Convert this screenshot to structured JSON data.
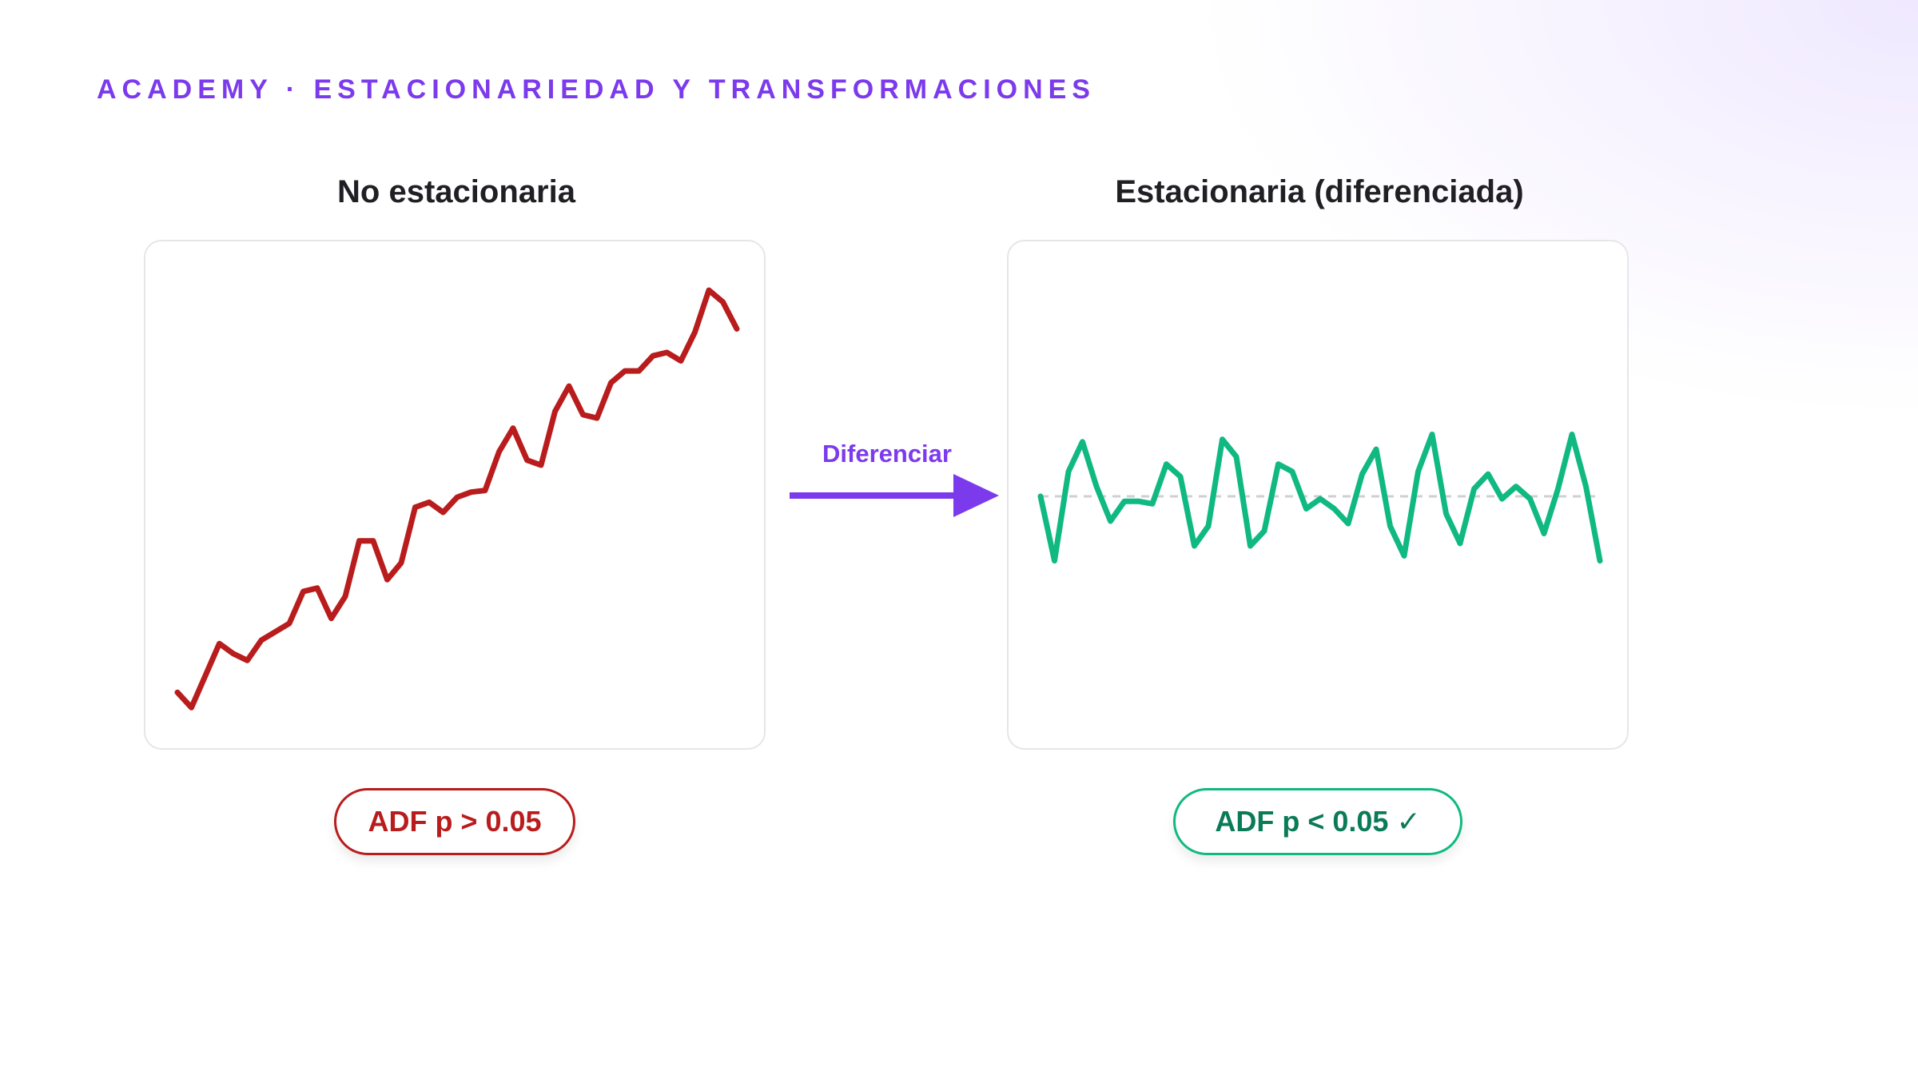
{
  "header": {
    "eyebrow": "ACADEMY · ESTACIONARIEDAD Y TRANSFORMACIONES"
  },
  "panels": {
    "left_title": "No estacionaria",
    "right_title": "Estacionaria (diferenciada)",
    "transform_label": "Diferenciar",
    "left_badge": "ADF p > 0.05",
    "right_badge": "ADF p < 0.05 ✓"
  },
  "colors": {
    "accent": "#7c3aed",
    "non_stationary": "#b91c1c",
    "stationary": "#10b981",
    "zero_line": "#cfcfd4"
  },
  "chart_data": [
    {
      "type": "line",
      "title": "No estacionaria",
      "x": [
        0,
        1,
        2,
        3,
        4,
        5,
        6,
        7,
        8,
        9,
        10,
        11,
        12,
        13,
        14,
        15,
        16,
        17,
        18,
        19,
        20,
        21,
        22,
        23,
        24,
        25,
        26,
        27,
        28,
        29,
        30,
        31,
        32,
        33,
        34,
        35,
        36,
        37,
        38,
        39,
        40
      ],
      "values": [
        2.2,
        0.4,
        4.2,
        8.0,
        6.8,
        6.0,
        8.4,
        9.4,
        10.4,
        14.2,
        14.6,
        11.0,
        13.6,
        20.2,
        20.2,
        15.6,
        17.6,
        24.2,
        24.8,
        23.6,
        25.4,
        26.0,
        26.2,
        30.8,
        33.6,
        29.8,
        29.2,
        35.6,
        38.6,
        35.2,
        34.8,
        39.0,
        40.4,
        40.4,
        42.2,
        42.6,
        41.6,
        45.0,
        50.0,
        48.6,
        45.4
      ],
      "ylim": [
        -1,
        52
      ],
      "grid": false,
      "legend": "none"
    },
    {
      "type": "line",
      "title": "Estacionaria (diferenciada)",
      "x": [
        0,
        1,
        2,
        3,
        4,
        5,
        6,
        7,
        8,
        9,
        10,
        11,
        12,
        13,
        14,
        15,
        16,
        17,
        18,
        19,
        20,
        21,
        22,
        23,
        24,
        25,
        26,
        27,
        28,
        29,
        30,
        31,
        32,
        33,
        34,
        35,
        36,
        37,
        38,
        39,
        40
      ],
      "values": [
        0.0,
        -2.6,
        1.0,
        2.2,
        0.4,
        -1.0,
        -0.2,
        -0.2,
        -0.3,
        1.3,
        0.8,
        -2.0,
        -1.2,
        2.3,
        1.6,
        -2.0,
        -1.4,
        1.3,
        1.0,
        -0.5,
        -0.1,
        -0.5,
        -1.1,
        0.9,
        1.9,
        -1.2,
        -2.4,
        1.0,
        2.5,
        -0.7,
        -1.9,
        0.3,
        0.9,
        -0.1,
        0.4,
        -0.1,
        -1.5,
        0.3,
        2.5,
        0.4,
        -2.6
      ],
      "ylim": [
        -9,
        9
      ],
      "zero_line": true,
      "grid": false,
      "legend": "none"
    }
  ]
}
